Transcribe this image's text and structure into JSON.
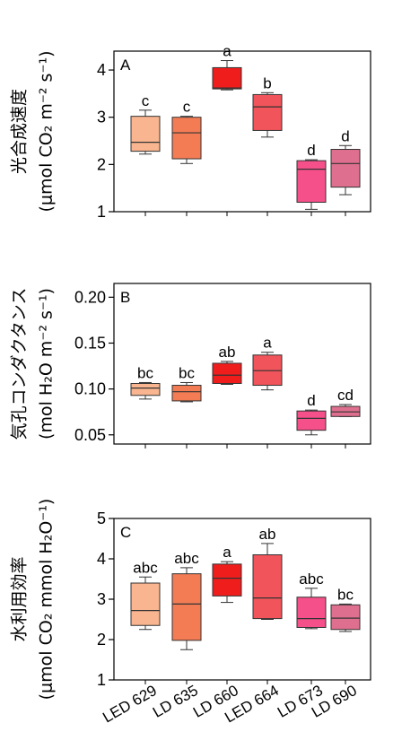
{
  "chart_data": [
    {
      "type": "box",
      "panel_label": "A",
      "ylabel_lines": [
        "光合成速度",
        "(μmol CO₂ m⁻² s⁻¹)"
      ],
      "ylim": [
        1,
        4.4
      ],
      "yticks": [
        1,
        2,
        3,
        4
      ],
      "ytick_labels": [
        "1",
        "2",
        "3",
        "4"
      ],
      "boxes": [
        {
          "category": "LED 629",
          "whisker_low": 2.22,
          "q1": 2.28,
          "median": 2.47,
          "q3": 3.02,
          "whisker_high": 3.15,
          "letter": "c"
        },
        {
          "category": "LD 635",
          "whisker_low": 2.02,
          "q1": 2.12,
          "median": 2.67,
          "q3": 3.0,
          "whisker_high": 3.02,
          "letter": "c"
        },
        {
          "category": "LD 660",
          "whisker_low": 3.58,
          "q1": 3.6,
          "median": 3.62,
          "q3": 4.05,
          "whisker_high": 4.2,
          "letter": "a"
        },
        {
          "category": "LED 664",
          "whisker_low": 2.58,
          "q1": 2.72,
          "median": 3.22,
          "q3": 3.48,
          "whisker_high": 3.52,
          "letter": "b"
        },
        {
          "category": "LD 673",
          "whisker_low": 1.05,
          "q1": 1.2,
          "median": 1.9,
          "q3": 2.08,
          "whisker_high": 2.1,
          "letter": "d"
        },
        {
          "category": "LD 690",
          "whisker_low": 1.36,
          "q1": 1.52,
          "median": 2.02,
          "q3": 2.32,
          "whisker_high": 2.4,
          "letter": "d"
        }
      ]
    },
    {
      "type": "box",
      "panel_label": "B",
      "ylabel_lines": [
        "気孔コンダクタンス",
        "(mol H₂O m⁻² s⁻¹)"
      ],
      "ylim": [
        0.04,
        0.215
      ],
      "yticks": [
        0.05,
        0.1,
        0.15,
        0.2
      ],
      "ytick_labels": [
        "0.05",
        "0.10",
        "0.15",
        "0.20"
      ],
      "boxes": [
        {
          "category": "LED 629",
          "whisker_low": 0.089,
          "q1": 0.093,
          "median": 0.101,
          "q3": 0.106,
          "whisker_high": 0.107,
          "letter": "bc"
        },
        {
          "category": "LD 635",
          "whisker_low": 0.086,
          "q1": 0.087,
          "median": 0.097,
          "q3": 0.104,
          "whisker_high": 0.107,
          "letter": "bc"
        },
        {
          "category": "LD 660",
          "whisker_low": 0.105,
          "q1": 0.106,
          "median": 0.115,
          "q3": 0.128,
          "whisker_high": 0.13,
          "letter": "ab"
        },
        {
          "category": "LED 664",
          "whisker_low": 0.099,
          "q1": 0.104,
          "median": 0.12,
          "q3": 0.137,
          "whisker_high": 0.14,
          "letter": "a"
        },
        {
          "category": "LD 673",
          "whisker_low": 0.05,
          "q1": 0.055,
          "median": 0.068,
          "q3": 0.076,
          "whisker_high": 0.077,
          "letter": "d"
        },
        {
          "category": "LD 690",
          "whisker_low": 0.07,
          "q1": 0.07,
          "median": 0.075,
          "q3": 0.081,
          "whisker_high": 0.083,
          "letter": "cd"
        }
      ]
    },
    {
      "type": "box",
      "panel_label": "C",
      "ylabel_lines": [
        "水利用効率",
        "(μmol CO₂ mmol H₂O⁻¹)"
      ],
      "ylim": [
        1,
        5
      ],
      "yticks": [
        1,
        2,
        3,
        4,
        5
      ],
      "ytick_labels": [
        "1",
        "2",
        "3",
        "4",
        "5"
      ],
      "boxes": [
        {
          "category": "LED 629",
          "whisker_low": 2.25,
          "q1": 2.35,
          "median": 2.72,
          "q3": 3.4,
          "whisker_high": 3.55,
          "letter": "abc"
        },
        {
          "category": "LD 635",
          "whisker_low": 1.75,
          "q1": 1.98,
          "median": 2.88,
          "q3": 3.63,
          "whisker_high": 3.78,
          "letter": "abc"
        },
        {
          "category": "LD 660",
          "whisker_low": 2.92,
          "q1": 3.08,
          "median": 3.52,
          "q3": 3.87,
          "whisker_high": 3.93,
          "letter": "a"
        },
        {
          "category": "LED 664",
          "whisker_low": 2.5,
          "q1": 2.52,
          "median": 3.03,
          "q3": 4.1,
          "whisker_high": 4.38,
          "letter": "ab"
        },
        {
          "category": "LD 673",
          "whisker_low": 2.27,
          "q1": 2.3,
          "median": 2.52,
          "q3": 3.05,
          "whisker_high": 3.27,
          "letter": "abc"
        },
        {
          "category": "LD 690",
          "whisker_low": 2.2,
          "q1": 2.25,
          "median": 2.53,
          "q3": 2.86,
          "whisker_high": 2.88,
          "letter": "bc"
        }
      ],
      "categories": [
        "LED 629",
        "LD 635",
        "LD 660",
        "LED 664",
        "LD 673",
        "LD 690"
      ]
    }
  ],
  "colors": {
    "LED 629": "#f9b58f",
    "LD 635": "#f47c55",
    "LD 660": "#f01d1d",
    "LED 664": "#f2545b",
    "LD 673": "#f5508a",
    "LD 690": "#df6f8f"
  }
}
